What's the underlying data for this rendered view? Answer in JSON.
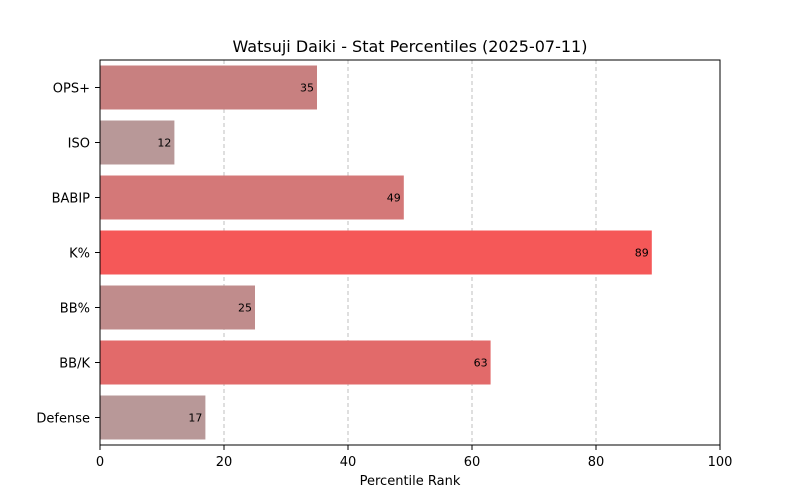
{
  "chart_data": {
    "type": "bar",
    "orientation": "horizontal",
    "title": "Watsuji Daiki - Stat Percentiles (2025-07-11)",
    "xlabel": "Percentile Rank",
    "ylabel": "",
    "xlim": [
      0,
      100
    ],
    "xticks": [
      0,
      20,
      40,
      60,
      80,
      100
    ],
    "grid": "vertical dashed",
    "categories": [
      "OPS+",
      "ISO",
      "BABIP",
      "K%",
      "BB%",
      "BB/K",
      "Defense"
    ],
    "values": [
      35,
      12,
      49,
      89,
      25,
      63,
      17
    ],
    "colors": [
      "#c88080",
      "#b89898",
      "#d47878",
      "#f55858",
      "#c08c8c",
      "#e26a6a",
      "#b89898"
    ]
  }
}
